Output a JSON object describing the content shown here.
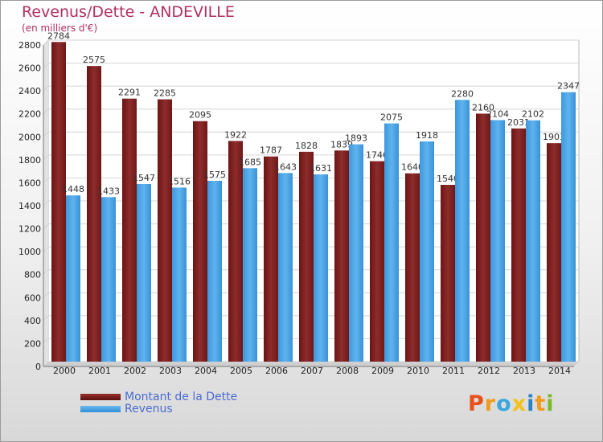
{
  "title": "Revenus/Dette - ANDEVILLE",
  "subtitle": "(en milliers d'€)",
  "logo": {
    "text": "Proxiti",
    "letters": [
      "P",
      "r",
      "o",
      "x",
      "i",
      "t",
      "i"
    ],
    "colors": [
      "#e8501a",
      "#f29a1c",
      "#3aa7df",
      "#f2c21c",
      "#2a83c9",
      "#f29a1c",
      "#7ab928"
    ]
  },
  "legend": [
    {
      "label": "Montant de la Dette",
      "color": "#7a1e1e"
    },
    {
      "label": "Revenus",
      "color": "#4aa3e6"
    }
  ],
  "chart_data": {
    "type": "bar",
    "title": "Revenus/Dette - ANDEVILLE",
    "subtitle": "(en milliers d'€)",
    "categories": [
      "2000",
      "2001",
      "2002",
      "2003",
      "2004",
      "2005",
      "2006",
      "2007",
      "2008",
      "2009",
      "2010",
      "2011",
      "2012",
      "2013",
      "2014"
    ],
    "series": [
      {
        "name": "Montant de la Dette",
        "color": "#8b2a2a",
        "values": [
          2784,
          2575,
          2291,
          2285,
          2095,
          1922,
          1787,
          1828,
          1839,
          1746,
          1640,
          1540,
          2160,
          2031,
          1903
        ]
      },
      {
        "name": "Revenus",
        "color": "#4aa3e6",
        "values": [
          1448,
          1433,
          1547,
          1516,
          1575,
          1685,
          1643,
          1631,
          1893,
          2075,
          1918,
          2280,
          2104,
          2102,
          2347
        ]
      }
    ],
    "data_labels": [
      [
        "2784",
        "2575",
        "2291",
        "2285",
        "2095",
        "1922",
        "1787",
        "1828",
        "1839",
        "1746",
        "1640",
        "1540",
        "2160",
        "2031",
        "1903"
      ],
      [
        "1448",
        "1433",
        "1547",
        "1516",
        "1575",
        "1685",
        "1643",
        "1631",
        "1893",
        "2075",
        "1918",
        "2280",
        "2104",
        "2102",
        "2347"
      ]
    ],
    "ylim": [
      0,
      2800
    ],
    "yticks": [
      0,
      200,
      400,
      600,
      800,
      1000,
      1200,
      1400,
      1600,
      1800,
      2000,
      2200,
      2400,
      2600,
      2800
    ],
    "grid": true,
    "legend_position": "bottom-left"
  }
}
